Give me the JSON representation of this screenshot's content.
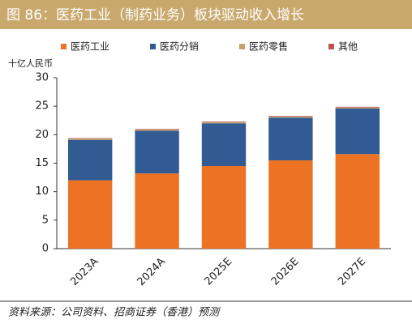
{
  "chart_data": {
    "type": "stacked_bar",
    "title": "图 86：医药工业（制药业务）板块驱动收入增长",
    "y_label": "十亿人民币",
    "source": "资料来源：公司资料、招商证券（香港）预测",
    "categories": [
      "2023A",
      "2024A",
      "2025E",
      "2026E",
      "2027E"
    ],
    "series": [
      {
        "name": "医药工业",
        "color": "#ec7224",
        "values": [
          12.0,
          13.2,
          14.5,
          15.5,
          16.6
        ]
      },
      {
        "name": "医药分销",
        "color": "#325b94",
        "values": [
          7.1,
          7.5,
          7.5,
          7.5,
          8.0
        ]
      },
      {
        "name": "医药零售",
        "color": "#c4a46c",
        "values": [
          0.2,
          0.2,
          0.2,
          0.2,
          0.2
        ]
      },
      {
        "name": "其他",
        "color": "#c0504d",
        "values": [
          0.1,
          0.1,
          0.1,
          0.1,
          0.1
        ]
      }
    ],
    "ylim": [
      0,
      30
    ],
    "yticks": [
      0,
      5,
      10,
      15,
      20,
      25,
      30
    ]
  }
}
